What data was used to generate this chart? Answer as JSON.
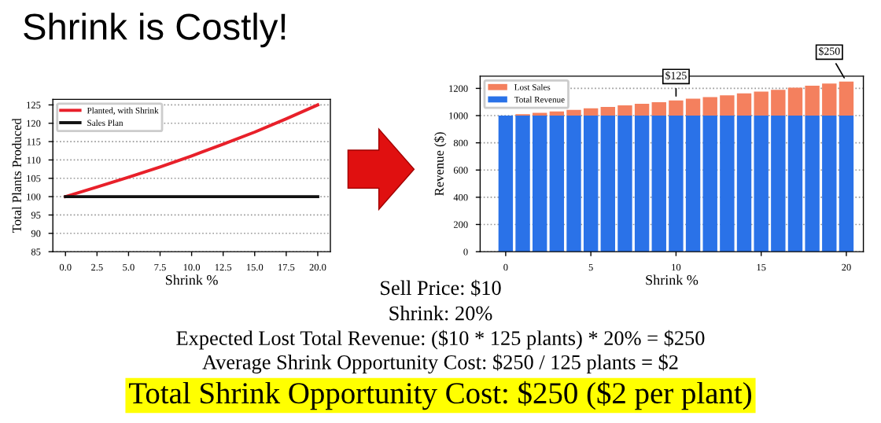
{
  "chart_data": [
    {
      "type": "line",
      "title": "Shrink is Costly!",
      "xlabel": "Shrink %",
      "ylabel": "Total Plants Produced",
      "x": [
        0,
        2.5,
        5,
        7.5,
        10,
        12.5,
        15,
        17.5,
        20
      ],
      "series": [
        {
          "name": "Planted, with Shrink",
          "color": "#e8202a",
          "values": [
            100,
            102.6,
            105.3,
            108.1,
            111.1,
            114.3,
            117.6,
            121.2,
            125
          ]
        },
        {
          "name": "Sales Plan",
          "color": "#111111",
          "values": [
            100,
            100,
            100,
            100,
            100,
            100,
            100,
            100,
            100
          ]
        }
      ],
      "xlim": [
        -1,
        21
      ],
      "xticks": [
        {
          "value": 0,
          "label": "0.0"
        },
        2.5,
        {
          "value": 5,
          "label": "5.0"
        },
        7.5,
        {
          "value": 10,
          "label": "10.0"
        },
        12.5,
        {
          "value": 15,
          "label": "15.0"
        },
        17.5,
        {
          "value": 20,
          "label": "20.0"
        }
      ],
      "ylim": [
        85,
        126.5
      ],
      "yticks": [
        85,
        90,
        95,
        100,
        105,
        110,
        115,
        120,
        125
      ],
      "grid": "y",
      "legend": "top left",
      "marker": "none",
      "line_style": "solid"
    },
    {
      "type": "bar",
      "stacked": true,
      "xlabel": "Shrink %",
      "ylabel": "Revenue ($)",
      "x": [
        0,
        1,
        2,
        3,
        4,
        5,
        6,
        7,
        8,
        9,
        10,
        11,
        12,
        13,
        14,
        15,
        16,
        17,
        18,
        19,
        20
      ],
      "series": [
        {
          "name": "Total Revenue",
          "color": "#2a72e8",
          "values": [
            1000,
            1000,
            1000,
            1000,
            1000,
            1000,
            1000,
            1000,
            1000,
            1000,
            1000,
            1000,
            1000,
            1000,
            1000,
            1000,
            1000,
            1000,
            1000,
            1000,
            1000
          ]
        },
        {
          "name": "Lost Sales",
          "color": "#f4805e",
          "values": [
            0,
            10,
            20,
            31,
            42,
            53,
            64,
            75,
            87,
            99,
            111,
            124,
            136,
            149,
            163,
            176,
            190,
            205,
            220,
            235,
            250
          ]
        }
      ],
      "xlim": [
        -1.5,
        21
      ],
      "xticks": [
        0,
        5,
        10,
        15,
        20
      ],
      "ylim": [
        0,
        1290
      ],
      "yticks": [
        0,
        200,
        400,
        600,
        800,
        1000,
        1200
      ],
      "annotations": [
        {
          "text": "$125",
          "x": 10,
          "y": 1111
        },
        {
          "text": "$250",
          "x": 20,
          "y": 1250
        }
      ],
      "grid": "y",
      "legend": "top left"
    },
    {
      "type": "other",
      "annotations": [
        "Sell Price: $10",
        "Shrink: 20%",
        "Expected Lost Total Revenue: ($10 * 125 plants) * 20% = $250",
        "Average Shrink Opportunity Cost: $250 / 125 plants = $2",
        "Total Shrink Opportunity Cost: $250 ($2 per plant)"
      ]
    }
  ]
}
